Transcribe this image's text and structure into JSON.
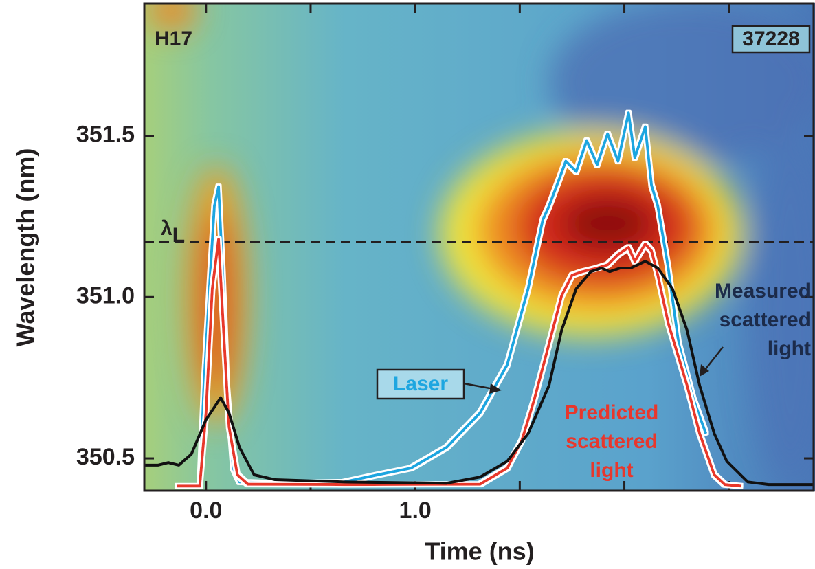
{
  "chart_data": {
    "type": "line",
    "xlabel": "Time (ns)",
    "ylabel": "Wavelength (nm)",
    "xlim": [
      -0.295,
      2.905
    ],
    "ylim": [
      350.4,
      351.91
    ],
    "xticks": [
      {
        "value": 0,
        "label": "0.0"
      },
      {
        "value": 1,
        "label": "1.0"
      }
    ],
    "xminorticks": [
      0.5,
      1.5,
      2,
      2.5
    ],
    "yticks": [
      350.5,
      {
        "value": 351,
        "label": "351.0"
      },
      351.5
    ],
    "shot_label": "H17",
    "shot_number": "37228",
    "reference_line": {
      "value": 351.171,
      "symbol": "λ",
      "subscript": "L"
    },
    "series": [
      {
        "label": [
          "Laser"
        ],
        "color": "#1ea6e0",
        "x": [
          -0.14,
          -0.03,
          -0.01,
          0.02,
          0.04,
          0.06,
          0.08,
          0.1,
          0.13,
          0.16,
          0.33,
          0.66,
          0.82,
          0.98,
          1.15,
          1.31,
          1.44,
          1.54,
          1.61,
          1.64,
          1.69,
          1.72,
          1.77,
          1.82,
          1.87,
          1.92,
          1.97,
          2.02,
          2.05,
          2.1,
          2.13,
          2.16,
          2.21,
          2.26,
          2.33,
          2.39
        ],
        "values": [
          350.414,
          350.414,
          350.726,
          351.068,
          351.282,
          351.342,
          351.068,
          350.726,
          350.47,
          350.427,
          350.423,
          350.427,
          350.449,
          350.47,
          350.534,
          350.641,
          350.79,
          351.026,
          351.239,
          351.282,
          351.368,
          351.421,
          351.389,
          351.485,
          351.41,
          351.506,
          351.421,
          351.571,
          351.432,
          351.528,
          351.346,
          351.282,
          351.09,
          350.855,
          350.684,
          350.577
        ]
      },
      {
        "label": [
          "Predicted",
          "scattered",
          "light"
        ],
        "color": "#e8372c",
        "x": [
          -0.14,
          -0.03,
          0,
          0.03,
          0.06,
          0.08,
          0.11,
          0.15,
          0.2,
          0.66,
          1.31,
          1.44,
          1.51,
          1.57,
          1.64,
          1.7,
          1.75,
          1.8,
          1.87,
          1.92,
          1.97,
          2.02,
          2.05,
          2.1,
          2.13,
          2.16,
          2.21,
          2.3,
          2.36,
          2.43,
          2.48,
          2.56
        ],
        "values": [
          350.414,
          350.414,
          350.641,
          351.026,
          351.179,
          350.94,
          350.598,
          350.449,
          350.42,
          350.419,
          350.42,
          350.47,
          350.556,
          350.684,
          350.855,
          351.004,
          351.068,
          351.079,
          351.09,
          351.1,
          351.132,
          351.154,
          351.111,
          351.165,
          351.143,
          351.068,
          350.919,
          350.726,
          350.577,
          350.449,
          350.419,
          350.414
        ]
      },
      {
        "label": [
          "Measured",
          "scattered",
          "light"
        ],
        "color": "#111111",
        "x": [
          -0.29,
          -0.23,
          -0.18,
          -0.13,
          -0.07,
          0,
          0.07,
          0.11,
          0.16,
          0.23,
          0.33,
          0.66,
          1.15,
          1.31,
          1.44,
          1.54,
          1.64,
          1.7,
          1.77,
          1.84,
          1.89,
          1.93,
          1.98,
          2.03,
          2.1,
          2.16,
          2.23,
          2.3,
          2.36,
          2.43,
          2.49,
          2.59,
          2.69,
          2.9
        ],
        "values": [
          350.479,
          350.479,
          350.487,
          350.479,
          350.513,
          350.62,
          350.688,
          350.641,
          350.534,
          350.449,
          350.434,
          350.427,
          350.423,
          350.442,
          350.491,
          350.577,
          350.726,
          350.897,
          351.026,
          351.079,
          351.09,
          351.079,
          351.09,
          351.09,
          351.111,
          351.09,
          351.026,
          350.897,
          350.726,
          350.577,
          350.491,
          350.427,
          350.419,
          350.419
        ]
      }
    ]
  }
}
